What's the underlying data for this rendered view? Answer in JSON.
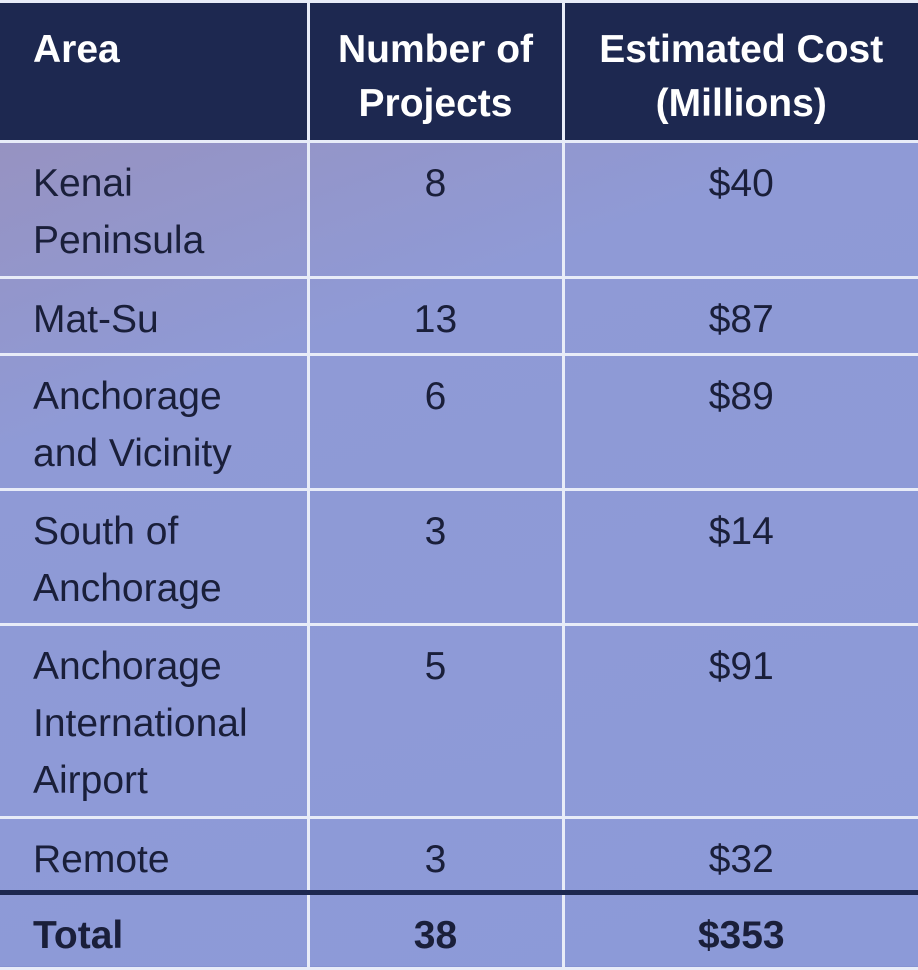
{
  "table": {
    "header": [
      "Area",
      "Number of Projects",
      "Estimated Cost (Millions)"
    ],
    "rows": [
      [
        "Kenai Peninsula",
        "8",
        "$40"
      ],
      [
        "Mat-Su",
        "13",
        "$87"
      ],
      [
        "Anchorage and Vicinity",
        "6",
        "$89"
      ],
      [
        "South of Anchorage",
        "3",
        "$14"
      ],
      [
        "Anchorage International Airport",
        "5",
        "$91"
      ],
      [
        "Remote",
        "3",
        "$32"
      ]
    ],
    "total": [
      "Total",
      "38",
      "$353"
    ]
  }
}
